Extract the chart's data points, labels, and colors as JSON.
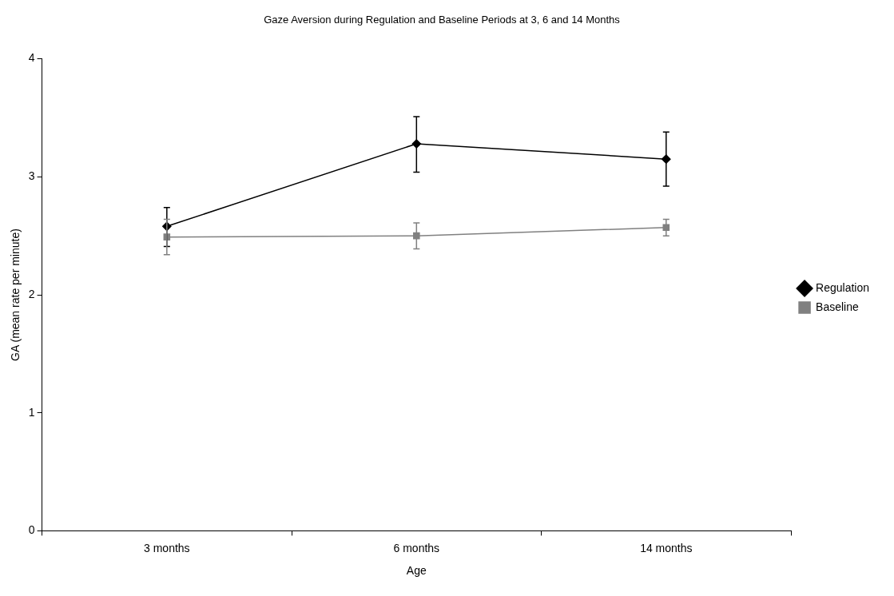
{
  "chart_data": {
    "type": "line",
    "title": "Gaze Aversion during Regulation and Baseline Periods at 3, 6 and 14 Months",
    "xlabel": "Age",
    "ylabel": "GA (mean rate per minute)",
    "categories": [
      "3 months",
      "6 months",
      "14 months"
    ],
    "series": [
      {
        "name": "Regulation",
        "color": "#000000",
        "marker": "diamond",
        "values": [
          2.58,
          3.28,
          3.15
        ],
        "errors": [
          [
            2.41,
            2.74
          ],
          [
            3.04,
            3.51
          ],
          [
            2.92,
            3.38
          ]
        ]
      },
      {
        "name": "Baseline",
        "color": "#808080",
        "marker": "square",
        "values": [
          2.49,
          2.5,
          2.57
        ],
        "errors": [
          [
            2.34,
            2.64
          ],
          [
            2.39,
            2.61
          ],
          [
            2.5,
            2.64
          ]
        ]
      }
    ],
    "ylim": [
      0,
      4
    ],
    "yticks": [
      0,
      1,
      2,
      3,
      4
    ],
    "grid": false,
    "legend": "right"
  }
}
